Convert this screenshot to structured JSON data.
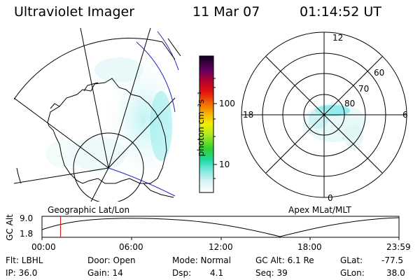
{
  "header": {
    "instrument": "Ultraviolet Imager",
    "date": "11 Mar 07",
    "time": "01:14:52 UT"
  },
  "colorbar": {
    "unit_label": "photon cm⁻²s⁻¹",
    "ticks": [
      "100",
      "10"
    ]
  },
  "polar_plot": {
    "mlt_labels": [
      "12",
      "18",
      "6",
      "0"
    ],
    "lat_labels": [
      "60",
      "70",
      "80"
    ]
  },
  "panel_labels": {
    "left": "Geographic Lat/Lon",
    "right": "Apex MLat/MLT"
  },
  "altitude_plot": {
    "axis_label": "GC Alt",
    "y_ticks": [
      "9.0",
      "1.8"
    ],
    "x_ticks": [
      "00:00",
      "06:00",
      "12:00",
      "18:00",
      "23:59"
    ],
    "current_time_marker_fraction": 0.052
  },
  "info": {
    "filter": "Flt: LBHL",
    "ip": "IP: 36.0",
    "door": "Door: Open",
    "gain": "Gain: 14",
    "mode": "Mode: Normal",
    "dsp_label": "Dsp:",
    "dsp_value": "4.1",
    "gc_alt": "GC Alt: 6.1 Re",
    "seq": "Seq: 39",
    "glat_label": "GLat:",
    "glat_value": "-77.5",
    "glon_label": "GLon:",
    "glon_value": "38.0"
  },
  "colors": {
    "aurora": "#7fe8ea",
    "marker": "#d02020",
    "meridian": "#2020c0"
  }
}
